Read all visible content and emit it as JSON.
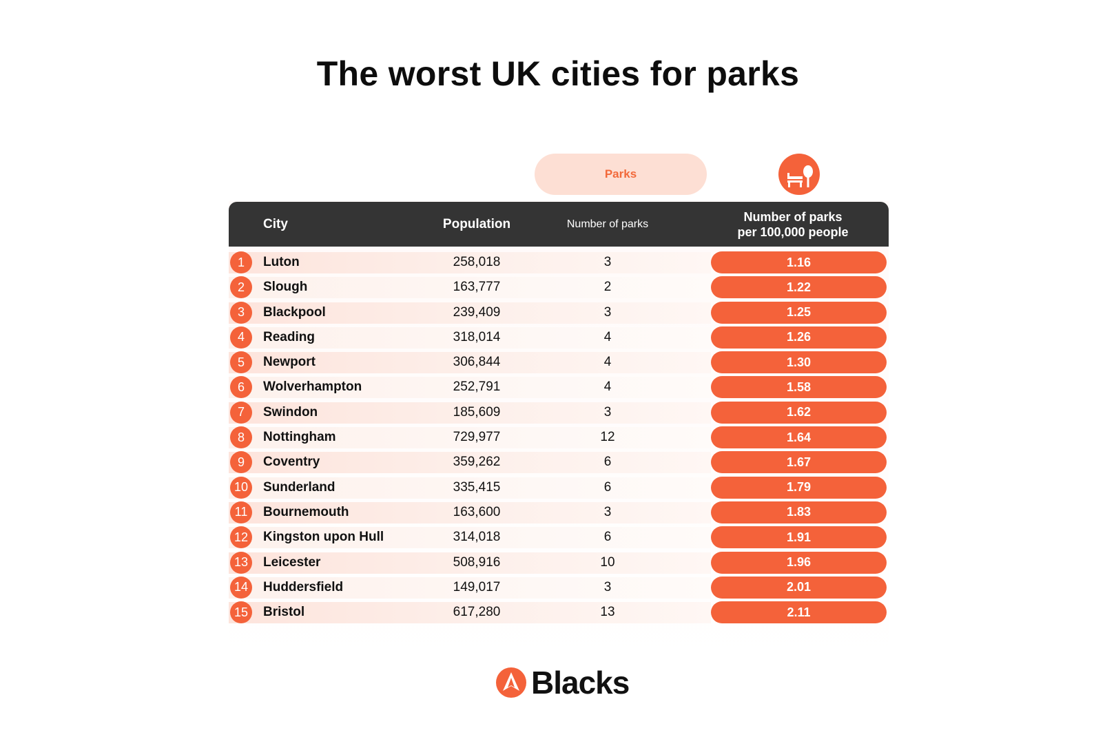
{
  "title": "The worst UK cities for parks",
  "category_pill": "Parks",
  "header_icon": "bench-and-tree-icon",
  "headers": {
    "city": "City",
    "population": "Population",
    "number_of_parks": "Number of parks",
    "per_100k_line1": "Number of parks",
    "per_100k_line2": "per 100,000 people"
  },
  "brand": {
    "name": "Blacks",
    "logo_icon": "blacks-arrow-logo-icon"
  },
  "colors": {
    "accent": "#f4623a",
    "header_bg": "#343434",
    "pill_bg": "#fddfd4"
  },
  "chart_data": {
    "type": "table",
    "title": "The worst UK cities for parks",
    "columns": [
      "City",
      "Population",
      "Number of parks",
      "Number of parks per 100,000 people"
    ],
    "rows": [
      {
        "rank": "1",
        "city": "Luton",
        "population": "258,018",
        "parks": "3",
        "per_100k": "1.16"
      },
      {
        "rank": "2",
        "city": "Slough",
        "population": "163,777",
        "parks": "2",
        "per_100k": "1.22"
      },
      {
        "rank": "3",
        "city": "Blackpool",
        "population": "239,409",
        "parks": "3",
        "per_100k": "1.25"
      },
      {
        "rank": "4",
        "city": "Reading",
        "population": "318,014",
        "parks": "4",
        "per_100k": "1.26"
      },
      {
        "rank": "5",
        "city": "Newport",
        "population": "306,844",
        "parks": "4",
        "per_100k": "1.30"
      },
      {
        "rank": "6",
        "city": "Wolverhampton",
        "population": "252,791",
        "parks": "4",
        "per_100k": "1.58"
      },
      {
        "rank": "7",
        "city": "Swindon",
        "population": "185,609",
        "parks": "3",
        "per_100k": "1.62"
      },
      {
        "rank": "8",
        "city": "Nottingham",
        "population": "729,977",
        "parks": "12",
        "per_100k": "1.64"
      },
      {
        "rank": "9",
        "city": "Coventry",
        "population": "359,262",
        "parks": "6",
        "per_100k": "1.67"
      },
      {
        "rank": "10",
        "city": "Sunderland",
        "population": "335,415",
        "parks": "6",
        "per_100k": "1.79"
      },
      {
        "rank": "11",
        "city": "Bournemouth",
        "population": "163,600",
        "parks": "3",
        "per_100k": "1.83"
      },
      {
        "rank": "12",
        "city": "Kingston upon Hull",
        "population": "314,018",
        "parks": "6",
        "per_100k": "1.91"
      },
      {
        "rank": "13",
        "city": "Leicester",
        "population": "508,916",
        "parks": "10",
        "per_100k": "1.96"
      },
      {
        "rank": "14",
        "city": "Huddersfield",
        "population": "149,017",
        "parks": "3",
        "per_100k": "2.01"
      },
      {
        "rank": "15",
        "city": "Bristol",
        "population": "617,280",
        "parks": "13",
        "per_100k": "2.11"
      }
    ]
  }
}
